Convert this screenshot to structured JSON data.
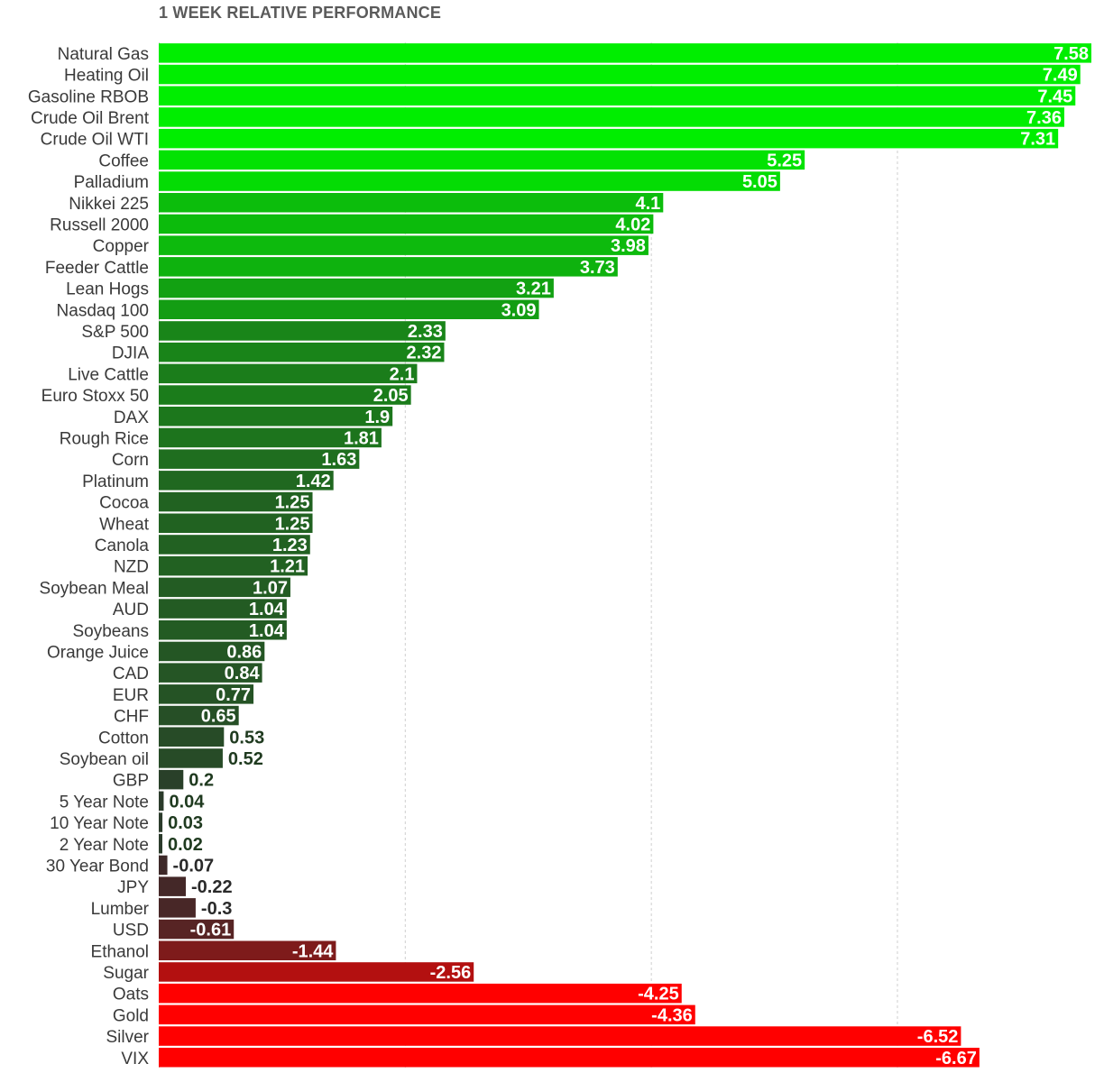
{
  "chart_data": {
    "type": "bar",
    "orientation": "horizontal",
    "title": "1 WEEK RELATIVE PERFORMANCE",
    "xlabel": "",
    "ylabel": "",
    "xlim": [
      0,
      7.58
    ],
    "grid": true,
    "categories": [
      "Natural Gas",
      "Heating Oil",
      "Gasoline RBOB",
      "Crude Oil Brent",
      "Crude Oil WTI",
      "Coffee",
      "Palladium",
      "Nikkei 225",
      "Russell 2000",
      "Copper",
      "Feeder Cattle",
      "Lean Hogs",
      "Nasdaq 100",
      "S&P 500",
      "DJIA",
      "Live Cattle",
      "Euro Stoxx 50",
      "DAX",
      "Rough Rice",
      "Corn",
      "Platinum",
      "Cocoa",
      "Wheat",
      "Canola",
      "NZD",
      "Soybean Meal",
      "AUD",
      "Soybeans",
      "Orange Juice",
      "CAD",
      "EUR",
      "CHF",
      "Cotton",
      "Soybean oil",
      "GBP",
      "5 Year Note",
      "10 Year Note",
      "2 Year Note",
      "30 Year Bond",
      "JPY",
      "Lumber",
      "USD",
      "Ethanol",
      "Sugar",
      "Oats",
      "Gold",
      "Silver",
      "VIX"
    ],
    "values": [
      7.58,
      7.49,
      7.45,
      7.36,
      7.31,
      5.25,
      5.05,
      4.1,
      4.02,
      3.98,
      3.73,
      3.21,
      3.09,
      2.33,
      2.32,
      2.1,
      2.05,
      1.9,
      1.81,
      1.63,
      1.42,
      1.25,
      1.25,
      1.23,
      1.21,
      1.07,
      1.04,
      1.04,
      0.86,
      0.84,
      0.77,
      0.65,
      0.53,
      0.52,
      0.2,
      0.04,
      0.03,
      0.02,
      -0.07,
      -0.22,
      -0.3,
      -0.61,
      -1.44,
      -2.56,
      -4.25,
      -4.36,
      -6.52,
      -6.67
    ],
    "value_labels": [
      "7.58",
      "7.49",
      "7.45",
      "7.36",
      "7.31",
      "5.25",
      "5.05",
      "4.1",
      "4.02",
      "3.98",
      "3.73",
      "3.21",
      "3.09",
      "2.33",
      "2.32",
      "2.1",
      "2.05",
      "1.9",
      "1.81",
      "1.63",
      "1.42",
      "1.25",
      "1.25",
      "1.23",
      "1.21",
      "1.07",
      "1.04",
      "1.04",
      "0.86",
      "0.84",
      "0.77",
      "0.65",
      "0.53",
      "0.52",
      "0.2",
      "0.04",
      "0.03",
      "0.02",
      "-0.07",
      "-0.22",
      "-0.3",
      "-0.61",
      "-1.44",
      "-2.56",
      "-4.25",
      "-4.36",
      "-6.52",
      "-6.67"
    ],
    "bar_length": "absolute value",
    "colors": {
      "positive_max": "#00ee00",
      "positive_min": "#2b3a2b",
      "negative_min": "#3a2a2a",
      "negative_max": "#ff0000",
      "label_inside": "#ffffff",
      "label_outside": "#1f3a1f",
      "grid": "#cfcfcf"
    }
  }
}
